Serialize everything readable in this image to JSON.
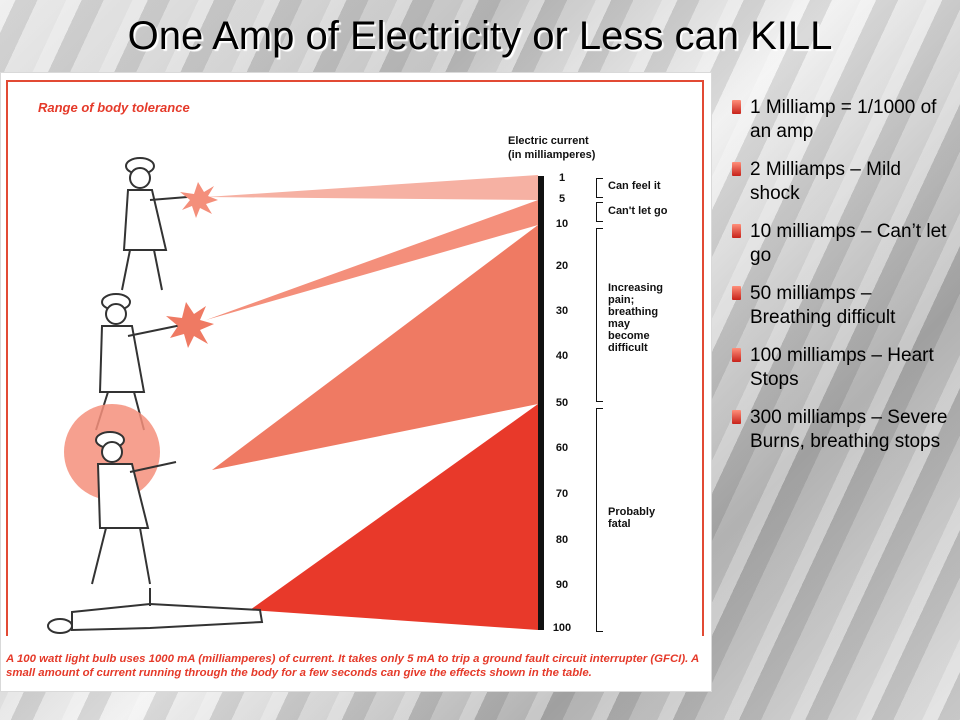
{
  "slide": {
    "title": "One Amp of Electricity or Less can KILL"
  },
  "figure": {
    "range_title": "Range of body tolerance",
    "scale_heading": [
      "Electric current",
      "(in milliamperes)"
    ],
    "scale_ticks": [
      "1",
      "5",
      "10",
      "20",
      "30",
      "40",
      "50",
      "60",
      "70",
      "80",
      "90",
      "100"
    ],
    "zones": [
      {
        "label": [
          "Can feel it"
        ]
      },
      {
        "label": [
          "Can't let go"
        ]
      },
      {
        "label": [
          "Increasing",
          "pain;",
          "breathing",
          "may",
          "become",
          "difficult"
        ]
      },
      {
        "label": [
          "Probably",
          "fatal"
        ]
      }
    ],
    "caption": "A 100 watt light bulb uses 1000 mA (milliamperes) of current. It takes only 5 mA to trip a ground fault circuit interrupter (GFCI). A small amount of current running through the body for a few seconds can give the effects shown in the table.",
    "colors": {
      "light": "#f6b1a3",
      "medium": "#f48f7b",
      "strong": "#ef7a63",
      "fatal": "#e8392a"
    }
  },
  "bullets": [
    "1 Milliamp = 1/1000 of an amp",
    "2 Milliamps – Mild shock",
    "10 milliamps – Can’t let go",
    "50 milliamps – Breathing difficult",
    "100 milliamps – Heart Stops",
    "300 milliamps – Severe Burns, breathing stops"
  ]
}
